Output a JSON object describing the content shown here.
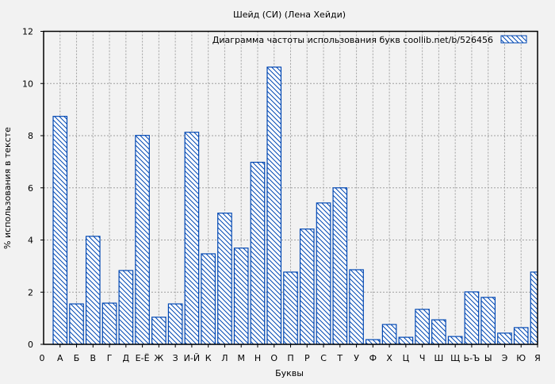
{
  "chart_data": {
    "type": "bar",
    "title": "Шейд (СИ) (Лена Хейди)",
    "xlabel": "Буквы",
    "ylabel": "% использования в тексте",
    "legend": {
      "label": "Диаграмма частоты использования букв  coollib.net/b/526456",
      "position": "top-right"
    },
    "x_tick_zero": "0",
    "categories": [
      "А",
      "Б",
      "В",
      "Г",
      "Д",
      "Е-Ё",
      "Ж",
      "З",
      "И-Й",
      "К",
      "Л",
      "М",
      "Н",
      "О",
      "П",
      "Р",
      "С",
      "Т",
      "У",
      "Ф",
      "Х",
      "Ц",
      "Ч",
      "Ш",
      "Щ",
      "Ь-Ъ",
      "Ы",
      "Э",
      "Ю",
      "Я"
    ],
    "values": [
      8.74,
      1.55,
      4.14,
      1.58,
      2.83,
      8.01,
      1.04,
      1.55,
      8.13,
      3.47,
      5.03,
      3.69,
      6.98,
      10.63,
      2.77,
      4.42,
      5.42,
      6.0,
      2.86,
      0.18,
      0.76,
      0.27,
      1.34,
      0.94,
      0.3,
      2.01,
      1.8,
      0.43,
      0.64,
      2.77
    ],
    "ylim": [
      0,
      12
    ],
    "yticks": [
      0,
      2,
      4,
      6,
      8,
      10,
      12
    ],
    "xlim": [
      0,
      30
    ],
    "grid": true,
    "colors": {
      "bar": "#0047b3",
      "grid": "#a0a0a0",
      "background": "#f2f2f2"
    }
  }
}
